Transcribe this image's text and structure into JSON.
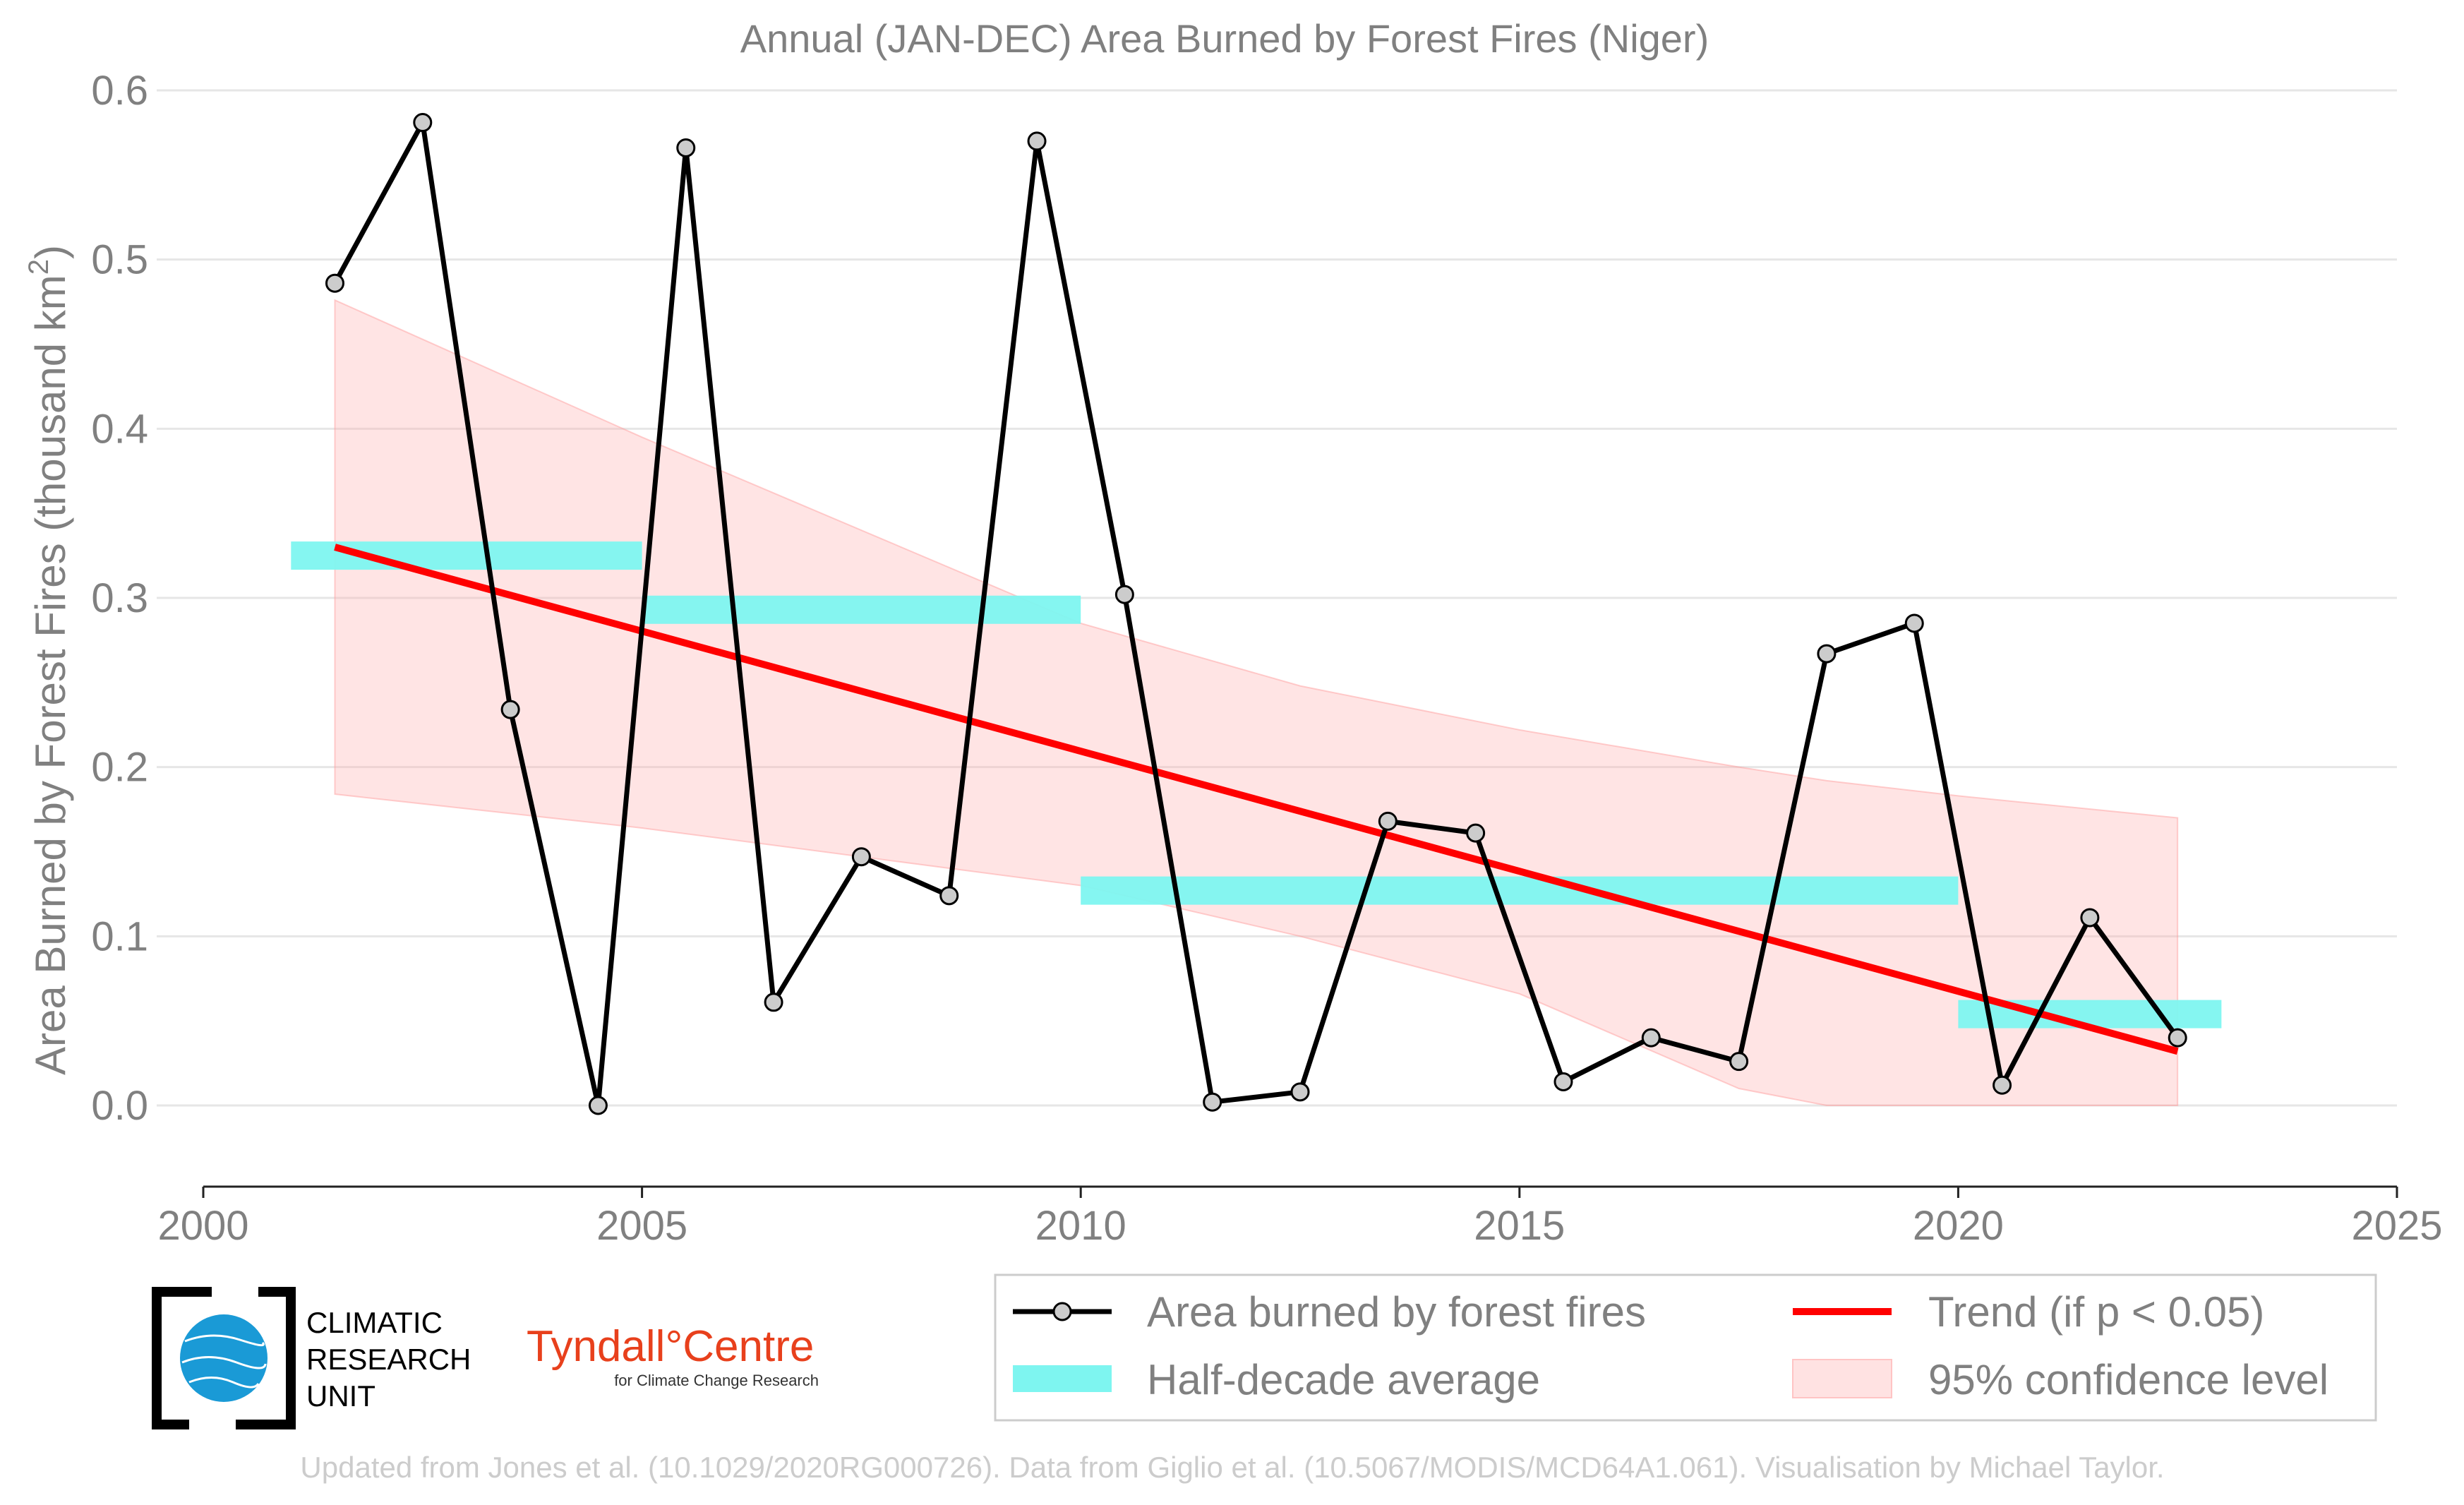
{
  "chart_data": {
    "type": "line",
    "title": "Annual (JAN-DEC) Area Burned by Forest Fires (Niger)",
    "ylabel_main": "Area Burned by Forest Fires (thousand km",
    "ylabel_sup": "2",
    "ylabel_close": ")",
    "xlim": [
      2000,
      2025
    ],
    "ylim": [
      0,
      0.6
    ],
    "x_ticks": [
      "2000",
      "2005",
      "2010",
      "2015",
      "2020",
      "2025"
    ],
    "y_ticks": [
      "0.0",
      "0.1",
      "0.2",
      "0.3",
      "0.4",
      "0.5",
      "0.6"
    ],
    "grid": "horizontal",
    "series": [
      {
        "name": "Area burned by forest fires",
        "color": "#000000",
        "x": [
          2001.5,
          2002.5,
          2003.5,
          2004.5,
          2005.5,
          2006.5,
          2007.5,
          2008.5,
          2009.5,
          2010.5,
          2011.5,
          2012.5,
          2013.5,
          2014.5,
          2015.5,
          2016.5,
          2017.5,
          2018.5,
          2019.5,
          2020.5,
          2021.5,
          2022.5
        ],
        "values": [
          0.486,
          0.581,
          0.234,
          0.0,
          0.566,
          0.061,
          0.147,
          0.124,
          0.57,
          0.302,
          0.002,
          0.008,
          0.168,
          0.161,
          0.014,
          0.04,
          0.026,
          0.267,
          0.285,
          0.012,
          0.111,
          0.04
        ]
      },
      {
        "name": "Half-decade average",
        "color": "#7ef5f0",
        "segments": [
          {
            "x0": 2001,
            "x1": 2005,
            "value": 0.325
          },
          {
            "x0": 2005,
            "x1": 2010,
            "value": 0.293
          },
          {
            "x0": 2010,
            "x1": 2020,
            "value": 0.127
          },
          {
            "x0": 2020,
            "x1": 2023,
            "value": 0.054
          }
        ]
      },
      {
        "name": "Trend (if p < 0.05)",
        "color": "#ff0000",
        "x": [
          2001.5,
          2022.5
        ],
        "values": [
          0.33,
          0.032
        ]
      },
      {
        "name": "95% confidence level",
        "color": "#ffd6d6",
        "x": [
          2001.5,
          2005,
          2010,
          2012.5,
          2015,
          2017.5,
          2018.5,
          2020,
          2022.5
        ],
        "upper": [
          0.476,
          0.395,
          0.285,
          0.248,
          0.222,
          0.2,
          0.192,
          0.183,
          0.17
        ],
        "lower": [
          0.184,
          0.164,
          0.13,
          0.1,
          0.066,
          0.01,
          0.0,
          0.0,
          0.0
        ]
      }
    ],
    "legend_position": "bottom-right"
  },
  "legend": {
    "items": [
      {
        "label": "Area burned by forest fires"
      },
      {
        "label": "Trend (if p < 0.05)"
      },
      {
        "label": "Half-decade average"
      },
      {
        "label": "95% confidence level"
      }
    ]
  },
  "logos": {
    "cru_line1": "CLIMATIC",
    "cru_line2": "RESEARCH",
    "cru_line3": "UNIT",
    "tyndall_main": "Tyndall°Centre",
    "tyndall_sub": "for Climate Change Research"
  },
  "credit": "Updated from Jones et al. (10.1029/2020RG000726). Data from Giglio et al. (10.5067/MODIS/MCD64A1.061). Visualisation by Michael Taylor."
}
